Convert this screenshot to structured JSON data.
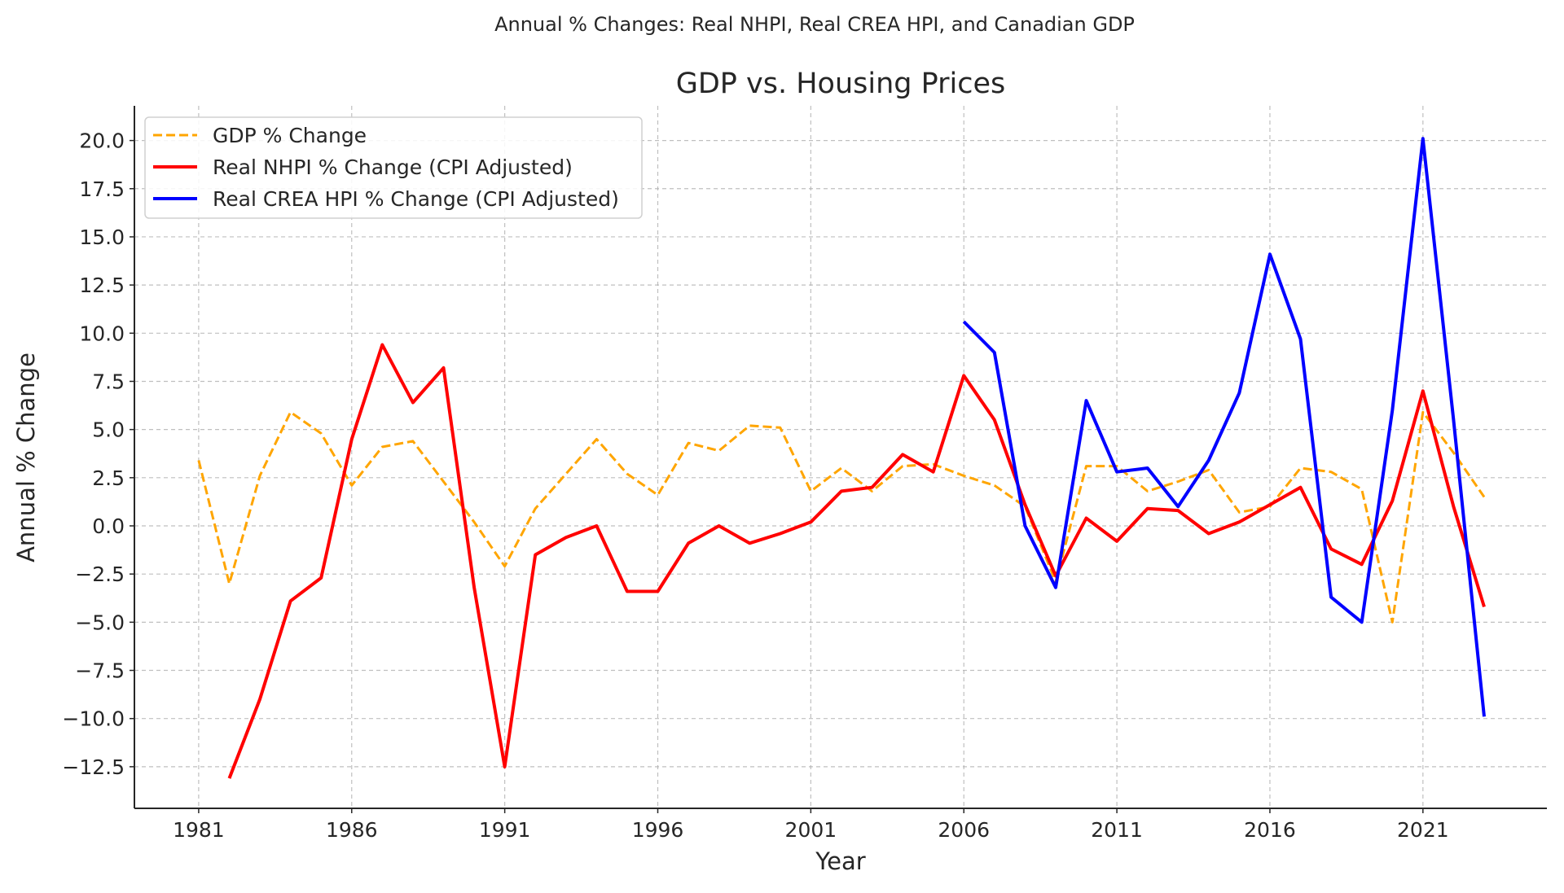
{
  "chart_data": {
    "type": "line",
    "suptitle": "Annual % Changes: Real NHPI, Real CREA HPI, and Canadian GDP",
    "title": "GDP vs. Housing Prices",
    "xlabel": "Year",
    "ylabel": "Annual % Change",
    "xlim": [
      1978.9,
      2025.05
    ],
    "ylim": [
      -14.66,
      21.8
    ],
    "xticks": [
      1981,
      1986,
      1991,
      1996,
      2001,
      2006,
      2011,
      2016,
      2021
    ],
    "yticks": [
      -12.5,
      -10.0,
      -7.5,
      -5.0,
      -2.5,
      0.0,
      2.5,
      5.0,
      7.5,
      10.0,
      12.5,
      15.0,
      17.5,
      20.0
    ],
    "grid": true,
    "legend_position": "top-left",
    "series": [
      {
        "name": "GDP % Change",
        "color": "#FFA500",
        "style": "dashed",
        "x": [
          1981,
          1982,
          1983,
          1984,
          1985,
          1986,
          1987,
          1988,
          1989,
          1990,
          1991,
          1992,
          1993,
          1994,
          1995,
          1996,
          1997,
          1998,
          1999,
          2000,
          2001,
          2002,
          2003,
          2004,
          2005,
          2006,
          2007,
          2008,
          2009,
          2010,
          2011,
          2012,
          2013,
          2014,
          2015,
          2016,
          2017,
          2018,
          2019,
          2020,
          2021,
          2022,
          2023
        ],
        "y": [
          3.4,
          -3.0,
          2.6,
          5.9,
          4.8,
          2.1,
          4.1,
          4.4,
          2.3,
          0.2,
          -2.1,
          0.9,
          2.7,
          4.5,
          2.7,
          1.6,
          4.3,
          3.9,
          5.2,
          5.1,
          1.8,
          3.0,
          1.8,
          3.1,
          3.2,
          2.6,
          2.1,
          1.0,
          -2.9,
          3.1,
          3.1,
          1.8,
          2.3,
          2.9,
          0.7,
          1.0,
          3.0,
          2.8,
          1.9,
          -5.0,
          5.9,
          3.8,
          1.5
        ]
      },
      {
        "name": "Real NHPI % Change (CPI Adjusted)",
        "color": "#FF0000",
        "style": "solid",
        "x": [
          1982,
          1983,
          1984,
          1985,
          1986,
          1987,
          1988,
          1989,
          1990,
          1991,
          1992,
          1993,
          1994,
          1995,
          1996,
          1997,
          1998,
          1999,
          2000,
          2001,
          2002,
          2003,
          2004,
          2005,
          2006,
          2007,
          2008,
          2009,
          2010,
          2011,
          2012,
          2013,
          2014,
          2015,
          2016,
          2017,
          2018,
          2019,
          2020,
          2021,
          2022,
          2023
        ],
        "y": [
          -13.1,
          -9.0,
          -3.9,
          -2.7,
          4.5,
          9.4,
          6.4,
          8.2,
          -3.2,
          -12.5,
          -1.5,
          -0.6,
          0.0,
          -3.4,
          -3.4,
          -0.9,
          0.0,
          -0.9,
          -0.4,
          0.2,
          1.8,
          2.0,
          3.7,
          2.8,
          7.8,
          5.5,
          1.1,
          -2.6,
          0.4,
          -0.8,
          0.9,
          0.8,
          -0.4,
          0.2,
          1.1,
          2.0,
          -1.2,
          -2.0,
          1.3,
          7.0,
          1.0,
          -4.2
        ]
      },
      {
        "name": "Real CREA HPI % Change (CPI Adjusted)",
        "color": "#0000FF",
        "style": "solid",
        "x": [
          2006,
          2007,
          2008,
          2009,
          2010,
          2011,
          2012,
          2013,
          2014,
          2015,
          2016,
          2017,
          2018,
          2019,
          2020,
          2021,
          2022,
          2023
        ],
        "y": [
          10.6,
          9.0,
          0.0,
          -3.2,
          6.5,
          2.8,
          3.0,
          1.0,
          3.4,
          6.9,
          14.1,
          9.7,
          -3.7,
          -5.0,
          6.0,
          20.1,
          5.5,
          -9.9
        ]
      }
    ]
  }
}
